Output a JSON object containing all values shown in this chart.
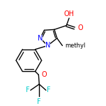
{
  "bg_color": "#ffffff",
  "bond_color": "#000000",
  "atom_colors": {
    "N": "#0000ff",
    "O": "#ff0000",
    "F": "#00cccc",
    "C": "#000000"
  },
  "figsize": [
    1.52,
    1.52
  ],
  "dpi": 100,
  "lw": 1.0,
  "fs": 7.0
}
